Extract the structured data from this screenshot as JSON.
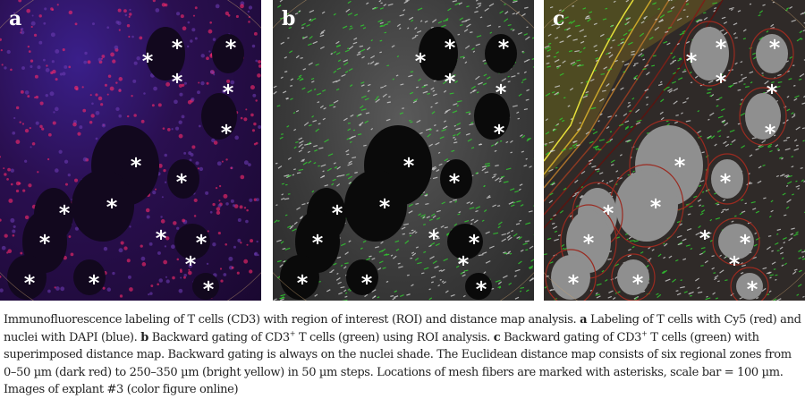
{
  "figure": {
    "panels": [
      {
        "label": "a"
      },
      {
        "label": "b"
      },
      {
        "label": "c"
      }
    ],
    "marker": "*",
    "colors": {
      "tcells_a": "#ff2a6a",
      "nuclei_a": "#3b2aa0",
      "tcells_bc": "#2fd12f",
      "zone_near": "#8b1a1a",
      "zone_far": "#e6e03a"
    }
  },
  "caption": {
    "intro": "Immunofluorescence labeling of T cells (CD3) with region of interest (ROI) and distance map analysis.",
    "a_label": "a",
    "a_text": "Labeling of T cells with Cy5 (red) and nuclei with DAPI (blue).",
    "b_label": "b",
    "b_text1": "Backward gating of CD3",
    "b_sup": "+",
    "b_text2": "T cells (green) using ROI analysis.",
    "c_label": "c",
    "c_text1": "Backward gating of CD3",
    "c_sup": "+",
    "c_text2": "T cells (green) with superimposed distance map. Backward gating is always on the nuclei shade. The Euclidean distance map consists of six regional zones from 0–50 µm (dark red) to 250–350 µm (bright yellow) in 50 µm steps. Locations of mesh fibers are marked with asterisks, scale bar = 100 µm. Images of explant #3 (color figure online)"
  }
}
